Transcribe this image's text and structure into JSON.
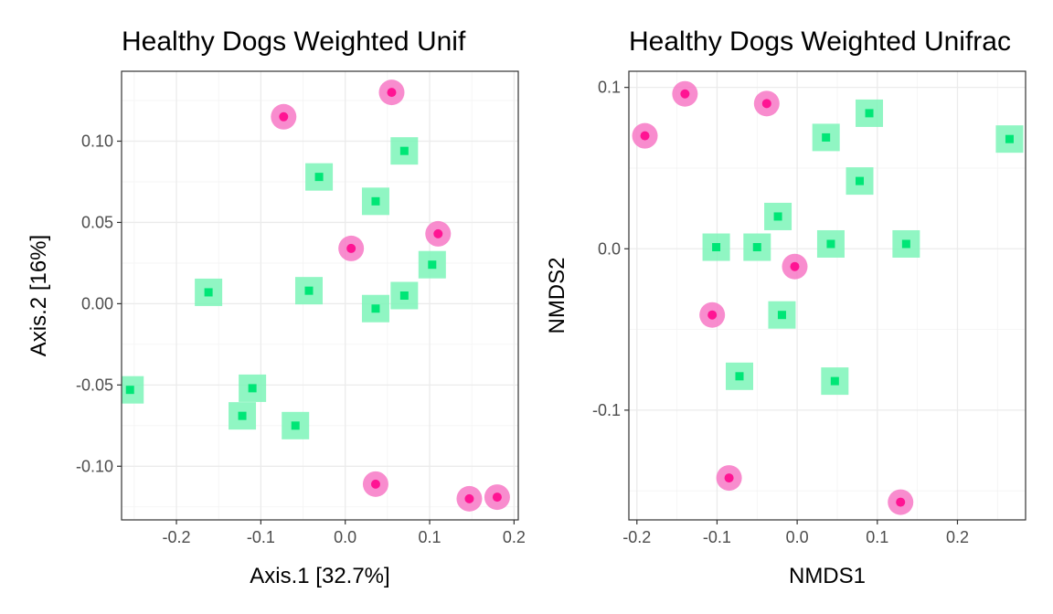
{
  "chart_data": [
    {
      "type": "scatter",
      "title": "Healthy Dogs Weighted Unif",
      "xlabel": "Axis.1   [32.7%]",
      "ylabel": "Axis.2   [16%]",
      "xlim": [
        -0.265,
        0.205
      ],
      "ylim": [
        -0.133,
        0.143
      ],
      "xticks": [
        -0.2,
        -0.1,
        0.0,
        0.1,
        0.2
      ],
      "xtick_labels": [
        "-0.2",
        "-0.1",
        "0.0",
        "0.1",
        "0.2"
      ],
      "yticks": [
        -0.1,
        -0.05,
        0.0,
        0.05,
        0.1
      ],
      "ytick_labels": [
        "-0.10",
        "-0.05",
        "0.00",
        "0.05",
        "0.10"
      ],
      "grid": true,
      "series": [
        {
          "marker": "circle",
          "color": "#ff1493",
          "halo_color": "#f778c6",
          "points": [
            [
              -0.073,
              0.115
            ],
            [
              0.055,
              0.13
            ],
            [
              0.007,
              0.034
            ],
            [
              0.11,
              0.043
            ],
            [
              0.036,
              -0.111
            ],
            [
              0.147,
              -0.12
            ],
            [
              0.18,
              -0.119
            ]
          ]
        },
        {
          "marker": "square",
          "color": "#00e676",
          "halo_color": "#7cf5b8",
          "points": [
            [
              0.07,
              0.094
            ],
            [
              -0.031,
              0.078
            ],
            [
              0.036,
              0.063
            ],
            [
              0.103,
              0.024
            ],
            [
              -0.162,
              0.007
            ],
            [
              -0.043,
              0.008
            ],
            [
              0.07,
              0.005
            ],
            [
              0.036,
              -0.003
            ],
            [
              -0.255,
              -0.053
            ],
            [
              -0.11,
              -0.052
            ],
            [
              -0.122,
              -0.069
            ],
            [
              -0.059,
              -0.075
            ]
          ]
        }
      ]
    },
    {
      "type": "scatter",
      "title": "Healthy Dogs Weighted Unifrac",
      "xlabel": "NMDS1",
      "ylabel": "NMDS2",
      "xlim": [
        -0.21,
        0.285
      ],
      "ylim": [
        -0.168,
        0.11
      ],
      "xticks": [
        -0.2,
        -0.1,
        0.0,
        0.1,
        0.2
      ],
      "xtick_labels": [
        "-0.2",
        "-0.1",
        "0.0",
        "0.1",
        "0.2"
      ],
      "yticks": [
        -0.1,
        0.0,
        0.1
      ],
      "ytick_labels": [
        "-0.1",
        "0.0",
        "0.1"
      ],
      "grid": true,
      "series": [
        {
          "marker": "circle",
          "color": "#ff1493",
          "halo_color": "#f778c6",
          "points": [
            [
              -0.19,
              0.07
            ],
            [
              -0.14,
              0.096
            ],
            [
              -0.038,
              0.09
            ],
            [
              -0.003,
              -0.011
            ],
            [
              -0.106,
              -0.041
            ],
            [
              -0.085,
              -0.142
            ],
            [
              0.129,
              -0.157
            ]
          ]
        },
        {
          "marker": "square",
          "color": "#00e676",
          "halo_color": "#7cf5b8",
          "points": [
            [
              0.09,
              0.084
            ],
            [
              0.036,
              0.069
            ],
            [
              0.265,
              0.068
            ],
            [
              0.078,
              0.042
            ],
            [
              -0.024,
              0.02
            ],
            [
              -0.101,
              0.001
            ],
            [
              -0.05,
              0.001
            ],
            [
              0.042,
              0.003
            ],
            [
              0.136,
              0.003
            ],
            [
              -0.019,
              -0.041
            ],
            [
              -0.072,
              -0.079
            ],
            [
              0.047,
              -0.082
            ]
          ]
        }
      ]
    }
  ]
}
